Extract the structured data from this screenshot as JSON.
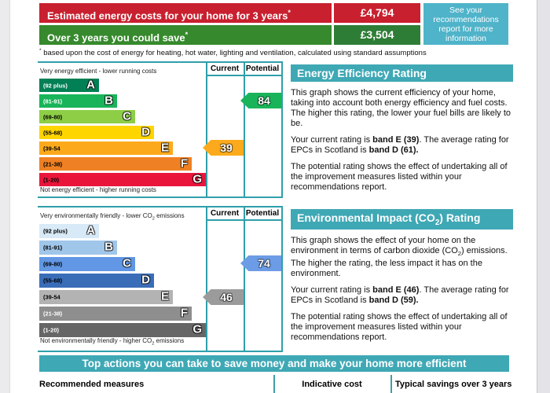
{
  "colors": {
    "teal_header": "#3fa8b5",
    "chart_line": "#2f9faa",
    "cost_red": "#c8202f",
    "cost_green_label": "#36892c",
    "cost_green_value": "#2e7d36",
    "side_note_blue": "#4fb3c9"
  },
  "cost_summary": {
    "rows": [
      {
        "label": "Estimated energy costs for your home for 3 years",
        "sup": "*",
        "value": "£4,794",
        "label_bg": "#c8202f",
        "value_bg": "#c8202f"
      },
      {
        "label": "Over 3 years you could save",
        "sup": "*",
        "value": "£3,504",
        "label_bg": "#36892c",
        "value_bg": "#2e7d36"
      }
    ],
    "side_note": "See your recommendations report for more information",
    "side_note_bg": "#4fb3c9",
    "footnote_sup": "*",
    "footnote": " based upon the cost of energy for heating, hot water, lighting and ventilation, calculated using standard assumptions"
  },
  "energy_chart": {
    "header_current": "Current",
    "header_potential": "Potential",
    "top_caption": "Very energy efficient - lower running costs",
    "bottom_caption": "Not energy efficient - higher running costs",
    "bands": [
      {
        "range": "(92 plus)",
        "letter": "A",
        "color": "#008054",
        "range_color": "#ffffff"
      },
      {
        "range": "(81-91)",
        "letter": "B",
        "color": "#19b459",
        "range_color": "#ffffff"
      },
      {
        "range": "(69-80)",
        "letter": "C",
        "color": "#8dce46",
        "range_color": "#000000"
      },
      {
        "range": "(55-68)",
        "letter": "D",
        "color": "#ffd500",
        "range_color": "#000000"
      },
      {
        "range": "(39-54",
        "letter": "E",
        "color": "#fcaa1b",
        "range_color": "#000000"
      },
      {
        "range": "(21-38)",
        "letter": "F",
        "color": "#ef8023",
        "range_color": "#000000"
      },
      {
        "range": "(1-20)",
        "letter": "G",
        "color": "#e9153b",
        "range_color": "#000000"
      }
    ],
    "current": {
      "value": "39",
      "color": "#fcaa1b"
    },
    "potential": {
      "value": "84",
      "color": "#19b459"
    }
  },
  "co2_chart": {
    "header_current": "Current",
    "header_potential": "Potential",
    "top_caption_pre": "Very environmentally friendly - lower CO",
    "top_caption_sub": "2",
    "top_caption_post": " emissions",
    "bottom_caption_pre": "Not environmentally friendly - higher CO",
    "bottom_caption_sub": "2",
    "bottom_caption_post": " emissions",
    "bands": [
      {
        "range": "(92 plus)",
        "letter": "A",
        "color": "#d8e9f7",
        "range_color": "#000000"
      },
      {
        "range": "(81-91)",
        "letter": "B",
        "color": "#a0c6ea",
        "range_color": "#000000"
      },
      {
        "range": "(69-80)",
        "letter": "C",
        "color": "#6197e4",
        "range_color": "#000000"
      },
      {
        "range": "(55-68)",
        "letter": "D",
        "color": "#3a6db8",
        "range_color": "#000000"
      },
      {
        "range": "(39-54",
        "letter": "E",
        "color": "#b3b3b3",
        "range_color": "#000000"
      },
      {
        "range": "(21-38)",
        "letter": "F",
        "color": "#8e8e8e",
        "range_color": "#ffffff"
      },
      {
        "range": "(1-20)",
        "letter": "G",
        "color": "#666666",
        "range_color": "#ffffff"
      }
    ],
    "current": {
      "value": "46",
      "color": "#9b9b9b"
    },
    "potential": {
      "value": "74",
      "color": "#6d9ce6"
    }
  },
  "energy_panel": {
    "title": "Energy Efficiency Rating",
    "p1": "This graph shows the current efficiency of your home, taking into account both energy efficiency and fuel costs. The higher this rating, the lower your fuel bills are likely to be.",
    "p2_pre": "Your current rating is ",
    "p2_bold1": "band E (39)",
    "p2_mid": ". The average rating for EPCs in Scotland is ",
    "p2_bold2": "band D (61).",
    "p3": "The potential rating shows the effect of undertaking all of the improvement measures listed within your recommendations report."
  },
  "co2_panel": {
    "title_pre": "Environmental Impact (CO",
    "title_sub": "2",
    "title_post": ") Rating",
    "p1_pre": "This graph shows the effect of your home on the environment in terms of carbon dioxide (CO",
    "p1_sub": "2",
    "p1_post": ") emissions. The higher the rating, the less impact it has on the environment.",
    "p2_pre": "Your current rating is ",
    "p2_bold1": "band E (46)",
    "p2_mid": ". The average rating for EPCs in Scotland is ",
    "p2_bold2": "band D (59).",
    "p3": "The potential rating shows the effect of undertaking all of the improvement measures listed within your recommendations report."
  },
  "actions": {
    "title": "Top actions you can take to save money and make your home more efficient",
    "col1": "Recommended measures",
    "col2": "Indicative cost",
    "col3": "Typical savings over 3 years"
  },
  "chart_data": [
    {
      "type": "bar",
      "title": "Energy Efficiency Rating",
      "categories": [
        "A (92 plus)",
        "B (81-91)",
        "C (69-80)",
        "D (55-68)",
        "E (39-54)",
        "F (21-38)",
        "G (1-20)"
      ],
      "current": 39,
      "current_band": "E",
      "potential": 84,
      "potential_band": "B",
      "scotland_average": 61,
      "scotland_average_band": "D"
    },
    {
      "type": "bar",
      "title": "Environmental Impact (CO2) Rating",
      "categories": [
        "A (92 plus)",
        "B (81-91)",
        "C (69-80)",
        "D (55-68)",
        "E (39-54)",
        "F (21-38)",
        "G (1-20)"
      ],
      "current": 46,
      "current_band": "E",
      "potential": 74,
      "potential_band": "C",
      "scotland_average": 59,
      "scotland_average_band": "D"
    }
  ]
}
